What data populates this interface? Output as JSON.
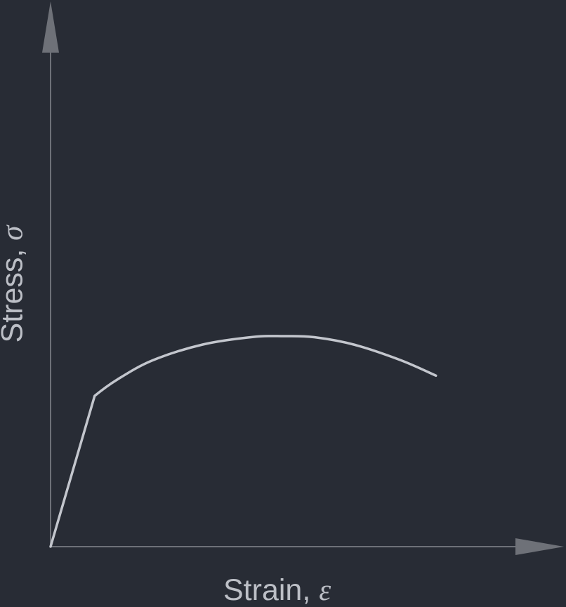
{
  "chart_data": {
    "type": "line",
    "title": "",
    "xlabel": {
      "text": "Strain, ",
      "symbol": "ε"
    },
    "ylabel": {
      "text": "Stress, ",
      "symbol": "σ"
    },
    "grid": false,
    "legend": "none",
    "xlim": [
      0,
      1
    ],
    "ylim": [
      0,
      1
    ],
    "series": [
      {
        "color": "#c3c6cd",
        "x": [
          0,
          0.087,
          0.13,
          0.2,
          0.3,
          0.4,
          0.46,
          0.52,
          0.6,
          0.69,
          0.76
        ],
        "y": [
          0,
          0.573,
          0.633,
          0.707,
          0.768,
          0.797,
          0.8,
          0.796,
          0.767,
          0.709,
          0.65
        ]
      }
    ],
    "colors": {
      "background": "#282c35",
      "axis": "#6e7178",
      "text": "#bcbfc6"
    }
  }
}
